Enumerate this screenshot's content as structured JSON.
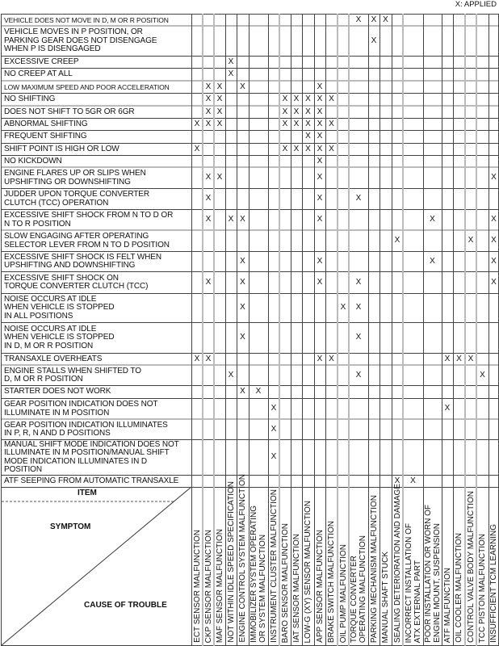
{
  "legend": "X: APPLIED",
  "mark": "X",
  "header": {
    "item": "ITEM",
    "symptom": "SYMPTOM",
    "cause": "CAUSE OF TROUBLE"
  },
  "causes": [
    "ECT SENSOR MALFUNCTION",
    "CKP SENSOR MALFUNCTION",
    "MAF SENSOR MALFUNCTION",
    "NOT WITHIN IDLE SPEED SPECIFICATION",
    "ENGINE CONTROL SYSTEM MALFUNCTION",
    "IMMOBILIZER SYSTEM OPERATING\nOR SYSTEM MALFUNCTION",
    "INSTRUMENT CLUSTER MALFUNCTION",
    "BARO SENSOR MALFUNCTION",
    "IAT SENSOR MALFUNCTION",
    "LOW-G (XY) SENSOR MALFUNCTION",
    "APP SENSOR MALFUNCTION",
    "BRAKE SWITCH MALFUNCTION",
    "OIL PUMP MALFUNCTION",
    "TORQUE CONVERTER\nOPERATING MALFUNCTION",
    "PARKING MECHANISM MALFUNCTION",
    "MANUAL SHAFT STUCK",
    "SEALING DETERIORATION AND DAMAGE",
    "INCORRECT INSTALLATION OF\nATX EXTERNAL PART",
    "POOR INSTALLATION OR WORN OF\nENGINE MOUNT, SUSPENSION",
    "ATF MALFUNCTION",
    "OIL COOLER MALFUNCTION",
    "CONTROL VALVE BODY MALFUNCTION",
    "TCC PISTON MALFUNCTION",
    "INSUFFICIENT TCM LEARNING"
  ],
  "symptoms": [
    {
      "text": "VEHICLE DOES NOT MOVE IN D, M OR R POSITION",
      "applied": [
        14,
        15,
        16
      ]
    },
    {
      "text": "VEHICLE MOVES IN P POSITION, OR\nPARKING GEAR DOES NOT DISENGAGE\nWHEN P IS DISENGAGED",
      "applied": [
        15
      ]
    },
    {
      "text": "EXCESSIVE CREEP",
      "applied": [
        4
      ]
    },
    {
      "text": "NO CREEP AT ALL",
      "applied": [
        4
      ]
    },
    {
      "text": "LOW MAXIMUM SPEED AND POOR ACCELERATION",
      "applied": [
        2,
        3,
        5,
        11
      ]
    },
    {
      "text": "NO SHIFTING",
      "applied": [
        2,
        3,
        8,
        9,
        10,
        11,
        12
      ]
    },
    {
      "text": "DOES NOT SHIFT TO 5GR OR 6GR",
      "applied": [
        2,
        3,
        8,
        9,
        10,
        11
      ]
    },
    {
      "text": "ABNORMAL SHIFTING",
      "applied": [
        1,
        2,
        3,
        8,
        9,
        10,
        11,
        12
      ]
    },
    {
      "text": "FREQUENT SHIFTING",
      "applied": [
        10,
        11
      ]
    },
    {
      "text": "SHIFT POINT IS HIGH OR LOW",
      "applied": [
        1,
        8,
        9,
        10,
        11,
        12
      ]
    },
    {
      "text": "NO KICKDOWN",
      "applied": [
        11
      ]
    },
    {
      "text": "ENGINE FLARES UP OR SLIPS WHEN\nUPSHIFTING OR DOWNSHIFTING",
      "applied": [
        2,
        3,
        11,
        24
      ]
    },
    {
      "text": "JUDDER UPON TORQUE CONVERTER\nCLUTCH (TCC) OPERATION",
      "applied": [
        2,
        11,
        14
      ]
    },
    {
      "text": "EXCESSIVE SHIFT SHOCK FROM N TO D OR\nN TO R POSITION",
      "applied": [
        2,
        4,
        5,
        11,
        19,
        24
      ]
    },
    {
      "text": "SLOW ENGAGING AFTER OPERATING\nSELECTOR LEVER FROM N TO D POSITION",
      "applied": [
        17,
        22,
        24
      ]
    },
    {
      "text": "EXCESSIVE SHIFT SHOCK IS FELT WHEN\nUPSHIFTING AND DOWNSHIFTING",
      "applied": [
        5,
        11,
        19,
        24
      ]
    },
    {
      "text": "EXCESSIVE SHIFT SHOCK ON\nTORQUE CONVERTER CLUTCH (TCC)",
      "applied": [
        2,
        5,
        11,
        14,
        24
      ]
    },
    {
      "text": "NOISE OCCURS AT IDLE\nWHEN VEHICLE IS STOPPED\nIN ALL POSITIONS",
      "applied": [
        5,
        13,
        14
      ]
    },
    {
      "text": "NOISE OCCURS AT IDLE\nWHEN VEHICLE IS STOPPED\nIN D, M OR R POSITION",
      "applied": [
        5,
        14
      ]
    },
    {
      "text": "TRANSAXLE OVERHEATS",
      "applied": [
        1,
        2,
        11,
        12,
        20,
        21,
        22
      ]
    },
    {
      "text": "ENGINE STALLS WHEN SHIFTED TO\nD, M OR R POSITION",
      "applied": [
        4,
        14,
        23
      ]
    },
    {
      "text": "STARTER DOES NOT WORK",
      "applied": [
        5,
        6
      ]
    },
    {
      "text": "GEAR POSITION INDICATION DOES NOT\nILLUMINATE IN M POSITION",
      "applied": [
        7,
        20
      ]
    },
    {
      "text": "GEAR POSITION INDICATION ILLUMINATES\nIN P, R, N AND D POSITIONS",
      "applied": [
        7
      ]
    },
    {
      "text": "MANUAL SHIFT MODE INDICATION DOES NOT\nILLUMINATE IN M POSITION/MANUAL SHIFT\nMODE INDICATION ILLUMINATES IN D\nPOSITION",
      "applied": [
        7
      ]
    },
    {
      "text": "ATF SEEPING FROM AUTOMATIC TRANSAXLE",
      "applied": [
        17,
        18
      ]
    }
  ]
}
